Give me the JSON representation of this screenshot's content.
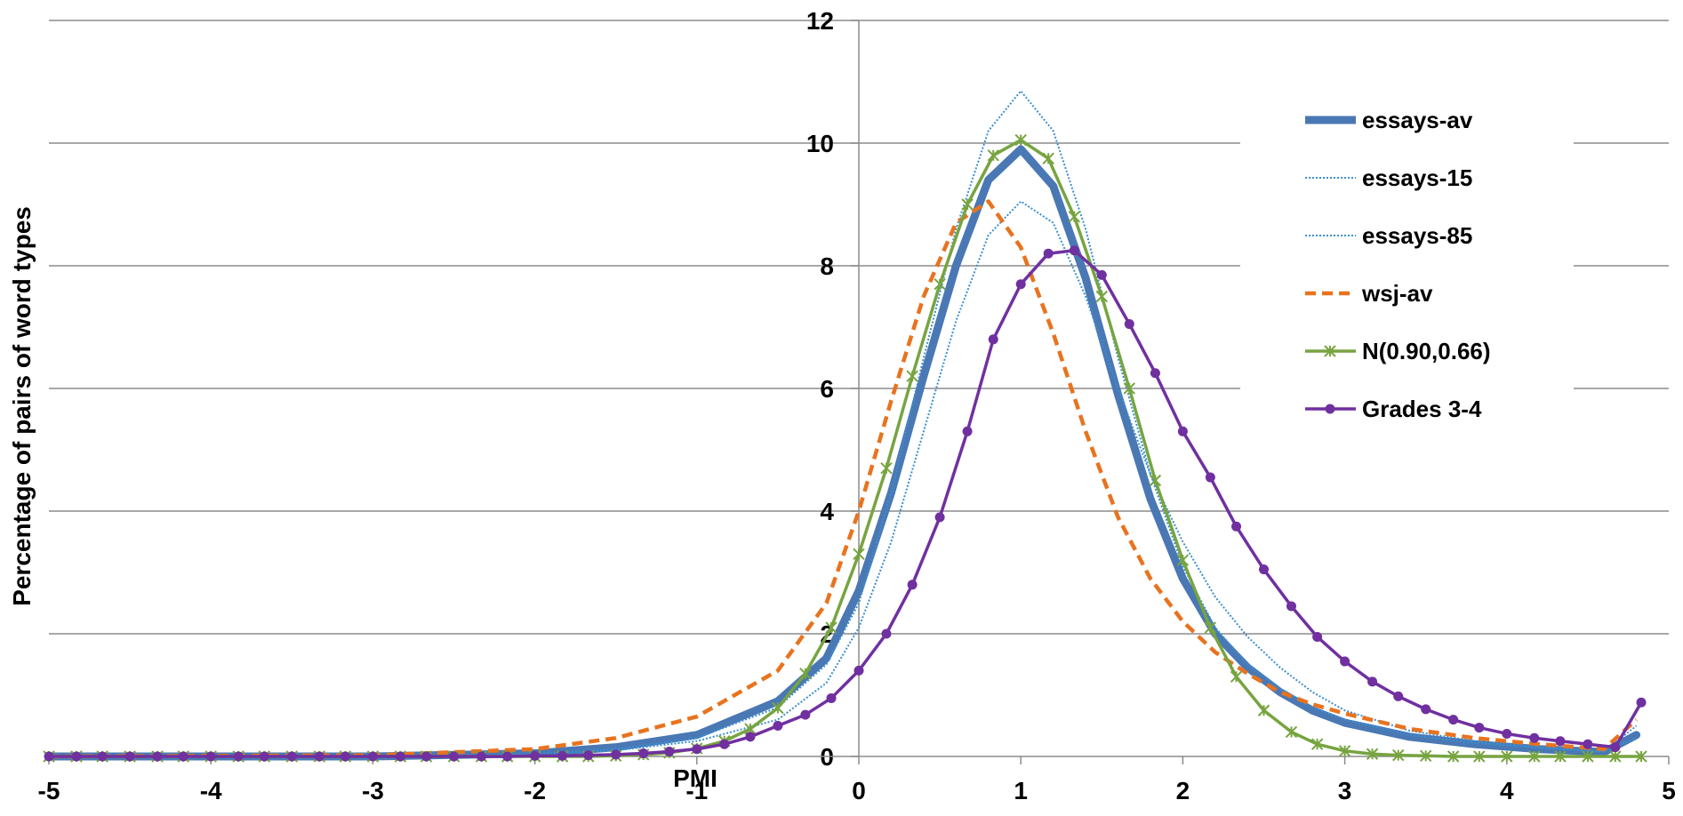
{
  "chart_data": {
    "type": "line",
    "title": "",
    "xlabel": "PMI",
    "ylabel": "Percentage of pairs of word types",
    "xlim": [
      -5,
      5
    ],
    "ylim": [
      0,
      12
    ],
    "x_ticks": [
      "-5",
      "-4",
      "-3",
      "-2",
      "-1",
      "0",
      "1",
      "2",
      "3",
      "4",
      "5"
    ],
    "y_ticks": [
      "0",
      "2",
      "4",
      "6",
      "8",
      "10",
      "12"
    ],
    "grid": "horizontal",
    "legend_position": "right",
    "series": [
      {
        "name": "essays-av",
        "color": "#4a78b4",
        "style": "solid-thick",
        "marker": "none",
        "points": [
          [
            -5,
            0
          ],
          [
            -3,
            0
          ],
          [
            -2,
            0.05
          ],
          [
            -1.5,
            0.15
          ],
          [
            -1,
            0.35
          ],
          [
            -0.5,
            0.9
          ],
          [
            -0.2,
            1.6
          ],
          [
            0,
            2.7
          ],
          [
            0.2,
            4.3
          ],
          [
            0.4,
            6.2
          ],
          [
            0.6,
            8.0
          ],
          [
            0.8,
            9.4
          ],
          [
            1.0,
            9.9
          ],
          [
            1.2,
            9.3
          ],
          [
            1.4,
            7.8
          ],
          [
            1.6,
            5.9
          ],
          [
            1.8,
            4.2
          ],
          [
            2.0,
            2.9
          ],
          [
            2.2,
            2.0
          ],
          [
            2.4,
            1.45
          ],
          [
            2.6,
            1.05
          ],
          [
            2.8,
            0.75
          ],
          [
            3.0,
            0.55
          ],
          [
            3.4,
            0.32
          ],
          [
            3.8,
            0.2
          ],
          [
            4.2,
            0.12
          ],
          [
            4.6,
            0.07
          ],
          [
            4.8,
            0.35
          ]
        ]
      },
      {
        "name": "essays-15",
        "color": "#3a8fd0",
        "style": "dotted",
        "marker": "none",
        "points": [
          [
            -5,
            0
          ],
          [
            -3,
            0
          ],
          [
            -2,
            0.04
          ],
          [
            -1.5,
            0.12
          ],
          [
            -1,
            0.3
          ],
          [
            -0.5,
            0.8
          ],
          [
            -0.2,
            1.5
          ],
          [
            0,
            2.5
          ],
          [
            0.2,
            4.3
          ],
          [
            0.4,
            6.5
          ],
          [
            0.6,
            8.6
          ],
          [
            0.8,
            10.2
          ],
          [
            1.0,
            10.85
          ],
          [
            1.2,
            10.2
          ],
          [
            1.4,
            8.6
          ],
          [
            1.6,
            6.5
          ],
          [
            1.8,
            4.6
          ],
          [
            2.0,
            3.1
          ],
          [
            2.2,
            2.1
          ],
          [
            2.4,
            1.5
          ],
          [
            2.6,
            1.1
          ],
          [
            2.8,
            0.8
          ],
          [
            3.0,
            0.6
          ],
          [
            3.4,
            0.35
          ],
          [
            3.8,
            0.22
          ],
          [
            4.2,
            0.14
          ],
          [
            4.6,
            0.08
          ],
          [
            4.8,
            0.5
          ]
        ]
      },
      {
        "name": "essays-85",
        "color": "#3a8fd0",
        "style": "dotted",
        "marker": "none",
        "points": [
          [
            -5,
            0
          ],
          [
            -3,
            0
          ],
          [
            -2,
            0.03
          ],
          [
            -1.5,
            0.1
          ],
          [
            -1,
            0.25
          ],
          [
            -0.5,
            0.6
          ],
          [
            -0.2,
            1.2
          ],
          [
            0,
            2.1
          ],
          [
            0.2,
            3.5
          ],
          [
            0.4,
            5.3
          ],
          [
            0.6,
            7.1
          ],
          [
            0.8,
            8.5
          ],
          [
            1.0,
            9.05
          ],
          [
            1.2,
            8.7
          ],
          [
            1.4,
            7.5
          ],
          [
            1.6,
            6.0
          ],
          [
            1.8,
            4.6
          ],
          [
            2.0,
            3.5
          ],
          [
            2.2,
            2.6
          ],
          [
            2.4,
            1.95
          ],
          [
            2.6,
            1.45
          ],
          [
            2.8,
            1.05
          ],
          [
            3.0,
            0.75
          ],
          [
            3.4,
            0.42
          ],
          [
            3.8,
            0.25
          ],
          [
            4.2,
            0.15
          ],
          [
            4.6,
            0.08
          ],
          [
            4.8,
            0.3
          ]
        ]
      },
      {
        "name": "wsj-av",
        "color": "#e8731f",
        "style": "dashed",
        "marker": "none",
        "points": [
          [
            -5,
            0
          ],
          [
            -3,
            0.02
          ],
          [
            -2,
            0.12
          ],
          [
            -1.5,
            0.3
          ],
          [
            -1,
            0.65
          ],
          [
            -0.5,
            1.4
          ],
          [
            -0.2,
            2.5
          ],
          [
            0,
            4.0
          ],
          [
            0.2,
            5.8
          ],
          [
            0.4,
            7.5
          ],
          [
            0.6,
            8.7
          ],
          [
            0.8,
            9.05
          ],
          [
            1.0,
            8.3
          ],
          [
            1.2,
            6.9
          ],
          [
            1.4,
            5.3
          ],
          [
            1.6,
            3.9
          ],
          [
            1.8,
            2.9
          ],
          [
            2.0,
            2.2
          ],
          [
            2.2,
            1.7
          ],
          [
            2.4,
            1.35
          ],
          [
            2.6,
            1.05
          ],
          [
            2.8,
            0.85
          ],
          [
            3.0,
            0.7
          ],
          [
            3.4,
            0.45
          ],
          [
            3.8,
            0.3
          ],
          [
            4.2,
            0.2
          ],
          [
            4.6,
            0.12
          ],
          [
            4.8,
            0.6
          ]
        ]
      },
      {
        "name": "N(0.90,0.66)",
        "color": "#77a440",
        "style": "solid",
        "marker": "asterisk",
        "points": [
          [
            -5,
            0
          ],
          [
            -4.83,
            0
          ],
          [
            -4.67,
            0
          ],
          [
            -4.5,
            0
          ],
          [
            -4.33,
            0
          ],
          [
            -4.17,
            0
          ],
          [
            -4,
            0
          ],
          [
            -3.83,
            0
          ],
          [
            -3.67,
            0
          ],
          [
            -3.5,
            0
          ],
          [
            -3.33,
            0
          ],
          [
            -3.17,
            0
          ],
          [
            -3,
            0
          ],
          [
            -2.83,
            0
          ],
          [
            -2.67,
            0
          ],
          [
            -2.5,
            0
          ],
          [
            -2.33,
            0
          ],
          [
            -2.17,
            0
          ],
          [
            -2,
            0
          ],
          [
            -1.83,
            0
          ],
          [
            -1.67,
            0
          ],
          [
            -1.5,
            0.01
          ],
          [
            -1.33,
            0.03
          ],
          [
            -1.17,
            0.06
          ],
          [
            -1,
            0.13
          ],
          [
            -0.83,
            0.25
          ],
          [
            -0.67,
            0.45
          ],
          [
            -0.5,
            0.79
          ],
          [
            -0.33,
            1.35
          ],
          [
            -0.17,
            2.1
          ],
          [
            0,
            3.3
          ],
          [
            0.17,
            4.7
          ],
          [
            0.33,
            6.2
          ],
          [
            0.5,
            7.7
          ],
          [
            0.67,
            9.0
          ],
          [
            0.83,
            9.8
          ],
          [
            1.0,
            10.05
          ],
          [
            1.17,
            9.75
          ],
          [
            1.33,
            8.8
          ],
          [
            1.5,
            7.5
          ],
          [
            1.67,
            6.0
          ],
          [
            1.83,
            4.5
          ],
          [
            2.0,
            3.2
          ],
          [
            2.17,
            2.1
          ],
          [
            2.33,
            1.3
          ],
          [
            2.5,
            0.75
          ],
          [
            2.67,
            0.4
          ],
          [
            2.83,
            0.2
          ],
          [
            3.0,
            0.09
          ],
          [
            3.17,
            0.04
          ],
          [
            3.33,
            0.02
          ],
          [
            3.5,
            0.01
          ],
          [
            3.67,
            0
          ],
          [
            3.83,
            0
          ],
          [
            4.0,
            0
          ],
          [
            4.17,
            0
          ],
          [
            4.33,
            0
          ],
          [
            4.5,
            0
          ],
          [
            4.67,
            0
          ],
          [
            4.83,
            0
          ]
        ]
      },
      {
        "name": "Grades 3-4",
        "color": "#7030a0",
        "style": "solid",
        "marker": "circle",
        "points": [
          [
            -5,
            0
          ],
          [
            -4.83,
            0
          ],
          [
            -4.67,
            0
          ],
          [
            -4.5,
            0
          ],
          [
            -4.33,
            0
          ],
          [
            -4.17,
            0
          ],
          [
            -4,
            0
          ],
          [
            -3.83,
            0
          ],
          [
            -3.67,
            0
          ],
          [
            -3.5,
            0
          ],
          [
            -3.33,
            0
          ],
          [
            -3.17,
            0
          ],
          [
            -3,
            0
          ],
          [
            -2.83,
            0
          ],
          [
            -2.67,
            0
          ],
          [
            -2.5,
            0
          ],
          [
            -2.33,
            0
          ],
          [
            -2.17,
            0
          ],
          [
            -2,
            0.01
          ],
          [
            -1.83,
            0.01
          ],
          [
            -1.67,
            0.02
          ],
          [
            -1.5,
            0.03
          ],
          [
            -1.33,
            0.05
          ],
          [
            -1.17,
            0.08
          ],
          [
            -1,
            0.12
          ],
          [
            -0.83,
            0.2
          ],
          [
            -0.67,
            0.32
          ],
          [
            -0.5,
            0.5
          ],
          [
            -0.33,
            0.68
          ],
          [
            -0.17,
            0.95
          ],
          [
            0,
            1.4
          ],
          [
            0.17,
            2.0
          ],
          [
            0.33,
            2.8
          ],
          [
            0.5,
            3.9
          ],
          [
            0.67,
            5.3
          ],
          [
            0.83,
            6.8
          ],
          [
            1.0,
            7.7
          ],
          [
            1.17,
            8.2
          ],
          [
            1.33,
            8.25
          ],
          [
            1.5,
            7.85
          ],
          [
            1.67,
            7.05
          ],
          [
            1.83,
            6.25
          ],
          [
            2.0,
            5.3
          ],
          [
            2.17,
            4.55
          ],
          [
            2.33,
            3.75
          ],
          [
            2.5,
            3.05
          ],
          [
            2.67,
            2.45
          ],
          [
            2.83,
            1.95
          ],
          [
            3.0,
            1.55
          ],
          [
            3.17,
            1.22
          ],
          [
            3.33,
            0.98
          ],
          [
            3.5,
            0.77
          ],
          [
            3.67,
            0.6
          ],
          [
            3.83,
            0.47
          ],
          [
            4.0,
            0.37
          ],
          [
            4.17,
            0.3
          ],
          [
            4.33,
            0.25
          ],
          [
            4.5,
            0.2
          ],
          [
            4.67,
            0.15
          ],
          [
            4.83,
            0.88
          ]
        ]
      }
    ]
  }
}
